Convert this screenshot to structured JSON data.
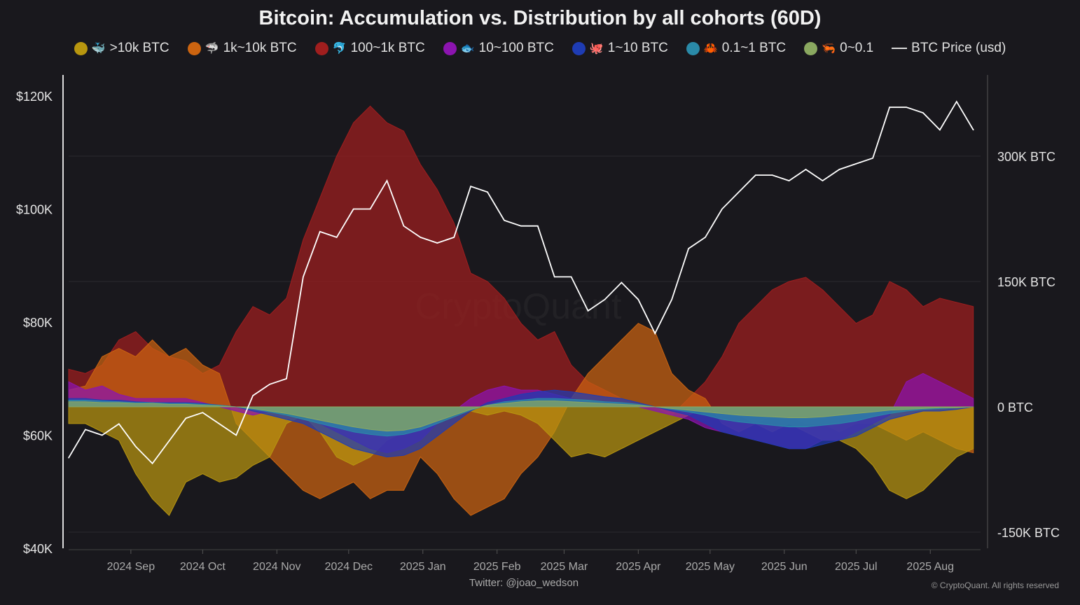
{
  "chart_data": {
    "type": "area",
    "title": "Bitcoin: Accumulation vs. Distribution by all cohorts (60D)",
    "left_axis": {
      "ticks": [
        "$40K",
        "$60K",
        "$80K",
        "$100K",
        "$120K"
      ],
      "values": [
        40,
        60,
        80,
        100,
        120
      ],
      "unit": "thousand USD",
      "range": [
        40,
        120
      ]
    },
    "right_axis": {
      "ticks": [
        "-150K BTC",
        "0 BTC",
        "150K BTC",
        "300K BTC"
      ],
      "values": [
        -150,
        0,
        150,
        300
      ],
      "unit": "thousand BTC"
    },
    "x_ticks": [
      "2024 Sep",
      "2024 Oct",
      "2024 Nov",
      "2024 Dec",
      "2025 Jan",
      "2025 Feb",
      "2025 Mar",
      "2025 Apr",
      "2025 May",
      "2025 Jun",
      "2025 Jul",
      "2025 Aug"
    ],
    "x_tick_dates": [
      "2024-09-01",
      "2024-10-01",
      "2024-11-01",
      "2024-12-01",
      "2025-01-01",
      "2025-02-01",
      "2025-03-01",
      "2025-04-01",
      "2025-05-01",
      "2025-06-01",
      "2025-07-01",
      "2025-08-01"
    ],
    "x_range": [
      "2024-08-06",
      "2025-08-22"
    ],
    "grid": true,
    "legend_position": "top",
    "watermark": "CryptoQuant",
    "x": [
      "2024-08-06",
      "2024-08-13",
      "2024-08-20",
      "2024-08-27",
      "2024-09-03",
      "2024-09-10",
      "2024-09-17",
      "2024-09-24",
      "2024-10-01",
      "2024-10-08",
      "2024-10-15",
      "2024-10-22",
      "2024-10-29",
      "2024-11-05",
      "2024-11-12",
      "2024-11-19",
      "2024-11-26",
      "2024-12-03",
      "2024-12-10",
      "2024-12-17",
      "2024-12-24",
      "2024-12-31",
      "2025-01-07",
      "2025-01-14",
      "2025-01-21",
      "2025-01-28",
      "2025-02-04",
      "2025-02-11",
      "2025-02-18",
      "2025-02-25",
      "2025-03-04",
      "2025-03-11",
      "2025-03-18",
      "2025-03-25",
      "2025-04-01",
      "2025-04-08",
      "2025-04-15",
      "2025-04-22",
      "2025-04-29",
      "2025-05-06",
      "2025-05-13",
      "2025-05-20",
      "2025-05-27",
      "2025-06-03",
      "2025-06-10",
      "2025-06-17",
      "2025-06-24",
      "2025-07-01",
      "2025-07-08",
      "2025-07-15",
      "2025-07-22",
      "2025-07-29",
      "2025-08-05",
      "2025-08-12",
      "2025-08-19"
    ],
    "series": [
      {
        "name": "100~1k BTC",
        "emoji": "🐬",
        "color": "#a01e1e",
        "axis": "right",
        "values": [
          45,
          40,
          50,
          80,
          90,
          70,
          60,
          55,
          40,
          50,
          90,
          120,
          110,
          130,
          200,
          250,
          300,
          340,
          360,
          340,
          330,
          290,
          260,
          220,
          160,
          150,
          130,
          100,
          80,
          90,
          50,
          30,
          20,
          10,
          5,
          0,
          -10,
          10,
          30,
          60,
          100,
          120,
          140,
          150,
          155,
          140,
          120,
          100,
          110,
          150,
          140,
          120,
          130,
          125,
          120
        ]
      },
      {
        "name": "1k~10k BTC",
        "emoji": "🦈",
        "color": "#cc6410",
        "axis": "right",
        "values": [
          20,
          25,
          60,
          70,
          60,
          80,
          60,
          70,
          50,
          40,
          -20,
          -40,
          -60,
          -80,
          -100,
          -110,
          -100,
          -90,
          -110,
          -100,
          -100,
          -60,
          -80,
          -110,
          -130,
          -120,
          -110,
          -80,
          -60,
          -30,
          10,
          40,
          60,
          80,
          100,
          90,
          40,
          20,
          10,
          -20,
          -30,
          -20,
          -10,
          -10,
          -20,
          -20,
          -30,
          -20,
          -20,
          -30,
          -40,
          -30,
          -40,
          -50,
          -55
        ]
      },
      {
        "name": ">10k BTC",
        "emoji": "🐳",
        "color": "#b8960f",
        "axis": "right",
        "values": [
          -20,
          -20,
          -30,
          -40,
          -80,
          -110,
          -130,
          -90,
          -80,
          -90,
          -85,
          -70,
          -60,
          -20,
          -10,
          -30,
          -60,
          -70,
          -60,
          -40,
          -30,
          -20,
          -10,
          0,
          -5,
          -10,
          -5,
          -10,
          -20,
          -40,
          -60,
          -55,
          -60,
          -50,
          -40,
          -30,
          -20,
          -10,
          0,
          -5,
          -10,
          -20,
          -30,
          -20,
          -30,
          -40,
          -40,
          -50,
          -70,
          -100,
          -110,
          -100,
          -80,
          -60,
          -50
        ]
      },
      {
        "name": "10~100 BTC",
        "emoji": "🐟",
        "color": "#8c14b0",
        "axis": "right",
        "values": [
          30,
          20,
          25,
          15,
          10,
          10,
          10,
          10,
          5,
          0,
          -5,
          -10,
          -5,
          0,
          -10,
          -20,
          -30,
          -40,
          -50,
          -55,
          -50,
          -40,
          -20,
          -5,
          10,
          20,
          25,
          20,
          20,
          15,
          10,
          5,
          5,
          5,
          0,
          -5,
          -10,
          -15,
          -25,
          -30,
          -35,
          -40,
          -45,
          -50,
          -50,
          -40,
          -40,
          -30,
          -20,
          -10,
          30,
          40,
          30,
          20,
          10
        ]
      },
      {
        "name": "1~10 BTC",
        "emoji": "🐙",
        "color": "#1e3cb4",
        "axis": "right",
        "values": [
          10,
          10,
          8,
          8,
          6,
          5,
          5,
          5,
          4,
          2,
          0,
          -5,
          -10,
          -15,
          -20,
          -30,
          -40,
          -50,
          -55,
          -60,
          -58,
          -50,
          -35,
          -20,
          -5,
          5,
          10,
          15,
          18,
          20,
          18,
          15,
          12,
          10,
          5,
          0,
          -5,
          -10,
          -20,
          -30,
          -35,
          -40,
          -45,
          -50,
          -50,
          -45,
          -40,
          -35,
          -25,
          -15,
          -10,
          -5,
          -5,
          -3,
          0
        ]
      },
      {
        "name": "0.1~1 BTC",
        "emoji": "🦀",
        "color": "#2a8aa8",
        "axis": "right",
        "values": [
          8,
          8,
          7,
          6,
          5,
          5,
          4,
          4,
          3,
          2,
          0,
          -3,
          -6,
          -10,
          -15,
          -20,
          -25,
          -30,
          -33,
          -35,
          -33,
          -28,
          -20,
          -12,
          -4,
          2,
          6,
          8,
          10,
          10,
          9,
          8,
          6,
          5,
          3,
          0,
          -3,
          -6,
          -10,
          -15,
          -18,
          -20,
          -22,
          -24,
          -24,
          -22,
          -20,
          -17,
          -12,
          -8,
          -5,
          -3,
          -2,
          -1,
          0
        ]
      },
      {
        "name": "0~0.1",
        "emoji": "🦐",
        "color": "#8aa860",
        "axis": "right",
        "values": [
          6,
          6,
          5,
          5,
          4,
          4,
          3,
          3,
          2,
          1,
          0,
          -2,
          -5,
          -8,
          -12,
          -16,
          -20,
          -24,
          -27,
          -29,
          -28,
          -24,
          -17,
          -10,
          -3,
          2,
          4,
          6,
          7,
          7,
          6,
          5,
          4,
          3,
          2,
          0,
          -2,
          -4,
          -6,
          -8,
          -10,
          -11,
          -12,
          -13,
          -13,
          -12,
          -10,
          -8,
          -6,
          -4,
          -3,
          -2,
          -1,
          -1,
          0
        ]
      }
    ],
    "price": {
      "name": "BTC Price (usd)",
      "color": "#ffffff",
      "axis": "left",
      "values": [
        56,
        61,
        60,
        62,
        58,
        55,
        59,
        63,
        64,
        62,
        60,
        67,
        69,
        70,
        88,
        96,
        95,
        100,
        100,
        105,
        97,
        95,
        94,
        95,
        104,
        103,
        98,
        97,
        97,
        88,
        88,
        82,
        84,
        87,
        84,
        78,
        84,
        93,
        95,
        100,
        103,
        106,
        106,
        105,
        107,
        105,
        107,
        108,
        109,
        118,
        118,
        117,
        114,
        119,
        114
      ]
    }
  },
  "legend": [
    {
      "label": ">10k BTC",
      "emoji": "🐳",
      "color": "#b8960f"
    },
    {
      "label": "1k~10k BTC",
      "emoji": "🦈",
      "color": "#cc6410"
    },
    {
      "label": "100~1k BTC",
      "emoji": "🐬",
      "color": "#a01e1e"
    },
    {
      "label": "10~100 BTC",
      "emoji": "🐟",
      "color": "#8c14b0"
    },
    {
      "label": "1~10 BTC",
      "emoji": "🐙",
      "color": "#1e3cb4"
    },
    {
      "label": "0.1~1 BTC",
      "emoji": "🦀",
      "color": "#2a8aa8"
    },
    {
      "label": "0~0.1",
      "emoji": "🦐",
      "color": "#8aa860"
    }
  ],
  "legend_price_label": "BTC Price (usd)",
  "credit": "Twitter: @joao_wedson",
  "copyright": "© CryptoQuant. All rights reserved"
}
